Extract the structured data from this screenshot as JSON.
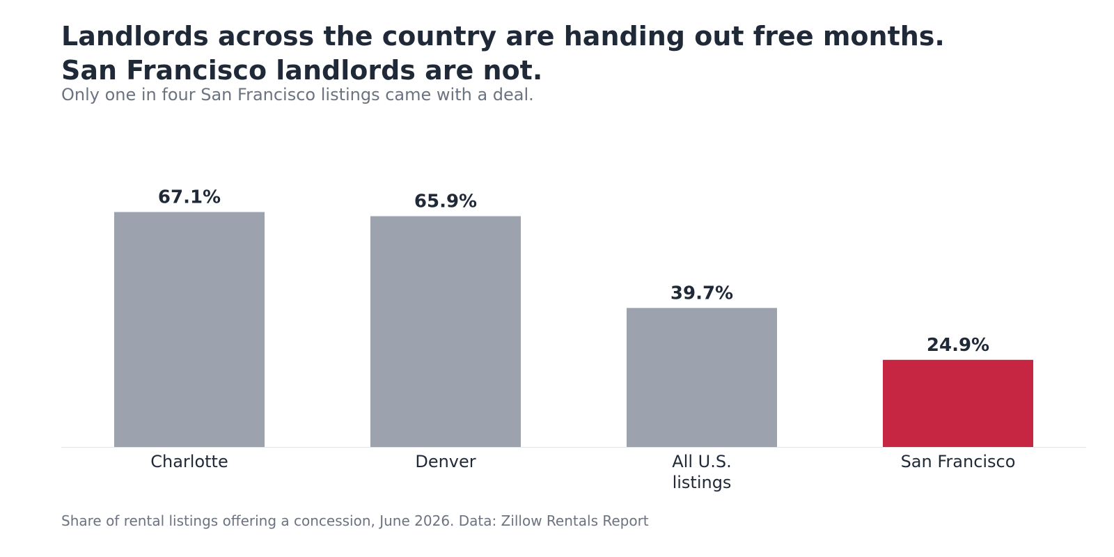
{
  "header": {
    "title_line1": "Landlords across the country are handing out free months.",
    "title_line2": "San Francisco landlords are not.",
    "subtitle": "Only one in four San Francisco listings came with a deal."
  },
  "footer": {
    "note": "Share of rental listings offering a concession, June 2026. Data: Zillow Rentals Report"
  },
  "colors": {
    "default_bar": "#9ca3af",
    "highlight_bar": "#c62641",
    "label_text": "#1f2937",
    "baseline": "#e5e7eb"
  },
  "chart_data": {
    "type": "bar",
    "title": "Landlords across the country are handing out free months. San Francisco landlords are not.",
    "subtitle": "Only one in four San Francisco listings came with a deal.",
    "xlabel": "",
    "ylabel": "",
    "categories": [
      "Charlotte",
      "Denver",
      "All U.S. listings",
      "San Francisco"
    ],
    "category_lines": [
      [
        "Charlotte"
      ],
      [
        "Denver"
      ],
      [
        "All U.S.",
        "listings"
      ],
      [
        "San Francisco"
      ]
    ],
    "values": [
      67.1,
      65.9,
      39.7,
      24.9
    ],
    "value_labels": [
      "67.1%",
      "65.9%",
      "39.7%",
      "24.9%"
    ],
    "highlight": "San Francisco",
    "ylim": [
      0,
      92
    ],
    "grid": false,
    "legend": "none"
  }
}
